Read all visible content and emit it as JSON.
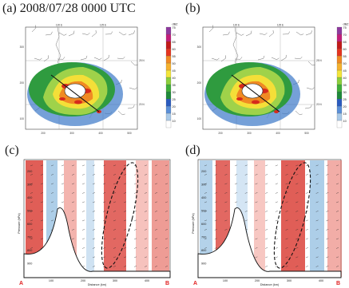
{
  "figure": {
    "panel_a": {
      "label": "(a)",
      "time": "2008/07/28 0000 UTC",
      "lon_labels": [
        "120 E",
        "125 E"
      ],
      "lat_labels": [
        "25 N",
        "20 N"
      ],
      "x_ticks": [
        "200",
        "300",
        "400",
        "500"
      ],
      "y_ticks": [
        "300",
        "200",
        "100"
      ],
      "colorbar_unit": "dBZ",
      "colorbar_ticks": [
        "75",
        "70",
        "65",
        "60",
        "55",
        "50",
        "45",
        "40",
        "35",
        "30",
        "25",
        "20",
        "15",
        "10"
      ]
    },
    "panel_b": {
      "label": "(b)",
      "lon_labels": [
        "120 E",
        "125 E"
      ],
      "lat_labels": [
        "25 N",
        "20 N"
      ],
      "x_ticks": [
        "200",
        "300",
        "400",
        "500"
      ],
      "y_ticks": [
        "300",
        "200",
        "100"
      ],
      "colorbar_unit": "dBZ",
      "colorbar_ticks": [
        "75",
        "70",
        "65",
        "60",
        "55",
        "50",
        "45",
        "40",
        "35",
        "30",
        "25",
        "20",
        "15",
        "10"
      ]
    },
    "panel_c": {
      "label": "(c)",
      "ylabel": "Pressure (hPa)",
      "xlabel": "Distance (km)",
      "y_ticks": [
        "200",
        "300",
        "400",
        "500",
        "600",
        "700",
        "800",
        "900"
      ],
      "x_ticks": [
        "100",
        "200",
        "300",
        "400"
      ],
      "start_label": "A",
      "end_label": "B"
    },
    "panel_d": {
      "label": "(d)",
      "ylabel": "Pressure (hPa)",
      "xlabel": "Distance (km)",
      "y_ticks": [
        "200",
        "300",
        "400",
        "500",
        "600",
        "700",
        "800",
        "900"
      ],
      "x_ticks": [
        "100",
        "200",
        "300",
        "400"
      ],
      "start_label": "A",
      "end_label": "B"
    }
  },
  "colors": {
    "colorbar": [
      "#ffffff",
      "#a9c9e8",
      "#5b8fd8",
      "#2a5bbf",
      "#1f8a3a",
      "#3fae3a",
      "#8ccf3c",
      "#f3e53a",
      "#f5b12e",
      "#f08a23",
      "#e5341f",
      "#c21a1a",
      "#c31e7b",
      "#8e3a9e"
    ]
  }
}
